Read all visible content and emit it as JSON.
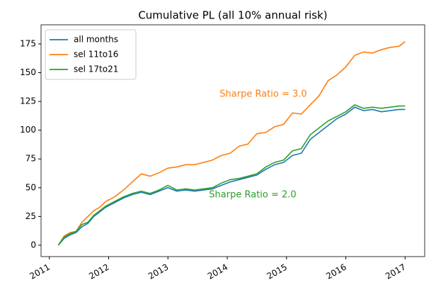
{
  "chart_data": {
    "type": "line",
    "title": "Cumulative PL (all 10% annual risk)",
    "x": [
      2011.15,
      2011.25,
      2011.35,
      2011.45,
      2011.55,
      2011.65,
      2011.75,
      2011.85,
      2011.95,
      2012.1,
      2012.25,
      2012.4,
      2012.55,
      2012.7,
      2012.85,
      2013.0,
      2013.15,
      2013.3,
      2013.45,
      2013.6,
      2013.75,
      2013.9,
      2014.05,
      2014.2,
      2014.35,
      2014.5,
      2014.65,
      2014.8,
      2014.95,
      2015.1,
      2015.25,
      2015.4,
      2015.55,
      2015.7,
      2015.85,
      2016.0,
      2016.15,
      2016.3,
      2016.45,
      2016.6,
      2016.75,
      2016.9,
      2017.0
    ],
    "series": [
      {
        "name": "all months",
        "color": "#1f77b4",
        "values": [
          0,
          6,
          9,
          11,
          16,
          19,
          25,
          29,
          33,
          37,
          41,
          44,
          46,
          44,
          47,
          50,
          47,
          48,
          47,
          48,
          49,
          52,
          55,
          57,
          59,
          61,
          66,
          70,
          72,
          78,
          80,
          92,
          98,
          104,
          110,
          114,
          120,
          117,
          118,
          116,
          117,
          118,
          118
        ]
      },
      {
        "name": "sel 11to16",
        "color": "#ff7f0e",
        "values": [
          0,
          8,
          11,
          12,
          20,
          25,
          30,
          33,
          38,
          42,
          48,
          55,
          62,
          60,
          63,
          67,
          68,
          70,
          70,
          72,
          74,
          78,
          80,
          86,
          88,
          97,
          98,
          103,
          105,
          115,
          114,
          122,
          130,
          143,
          148,
          155,
          165,
          168,
          167,
          170,
          172,
          173,
          177
        ]
      },
      {
        "name": "sel 17to21",
        "color": "#2ca02c",
        "values": [
          0,
          7,
          10,
          12,
          18,
          20,
          26,
          30,
          34,
          38,
          42,
          45,
          47,
          45,
          48,
          52,
          48,
          49,
          48,
          49,
          50,
          54,
          57,
          58,
          60,
          62,
          68,
          72,
          74,
          82,
          84,
          96,
          102,
          108,
          112,
          116,
          122,
          119,
          120,
          119,
          120,
          121,
          121
        ]
      }
    ],
    "annotations": [
      {
        "text": "Sharpe Ratio = 3.0",
        "color": "#ff7f0e"
      },
      {
        "text": "Sharpe Ratio = 2.0",
        "color": "#2ca02c"
      }
    ],
    "xlim": [
      2010.86,
      2017.33
    ],
    "xticks": [
      2011,
      2012,
      2013,
      2014,
      2015,
      2016,
      2017
    ],
    "ylim": [
      -9.9,
      191.6
    ],
    "yticks": [
      0,
      25,
      50,
      75,
      100,
      125,
      150,
      175
    ],
    "legend": "upper left"
  }
}
